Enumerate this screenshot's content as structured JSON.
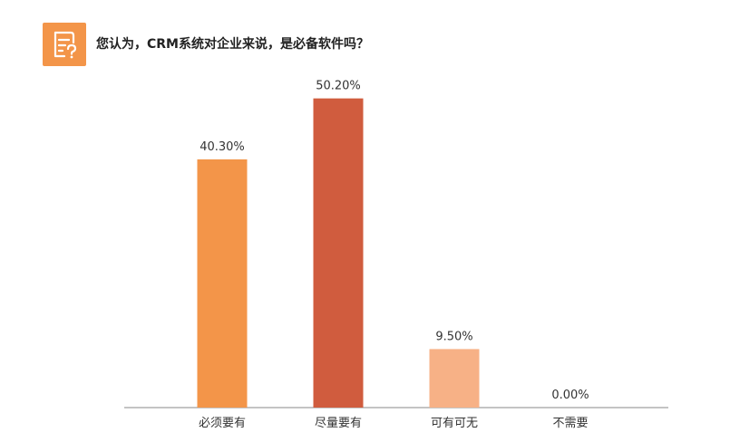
{
  "header": {
    "icon": "question-document-icon",
    "title": "您认为，CRM系统对企业来说，是必备软件吗？"
  },
  "colors": {
    "accent": "#f39549",
    "bars": [
      "#f39549",
      "#d05c3e",
      "#f7b186",
      "#f39549"
    ],
    "axis": "#888888"
  },
  "chart_data": {
    "type": "bar",
    "categories": [
      "必须要有",
      "尽量要有",
      "可有可无",
      "不需要"
    ],
    "values": [
      40.3,
      50.2,
      9.5,
      0.0
    ],
    "value_labels": [
      "40.30%",
      "50.20%",
      "9.50%",
      "0.00%"
    ],
    "ylim": [
      0,
      55
    ],
    "grid": false,
    "legend": "none"
  }
}
